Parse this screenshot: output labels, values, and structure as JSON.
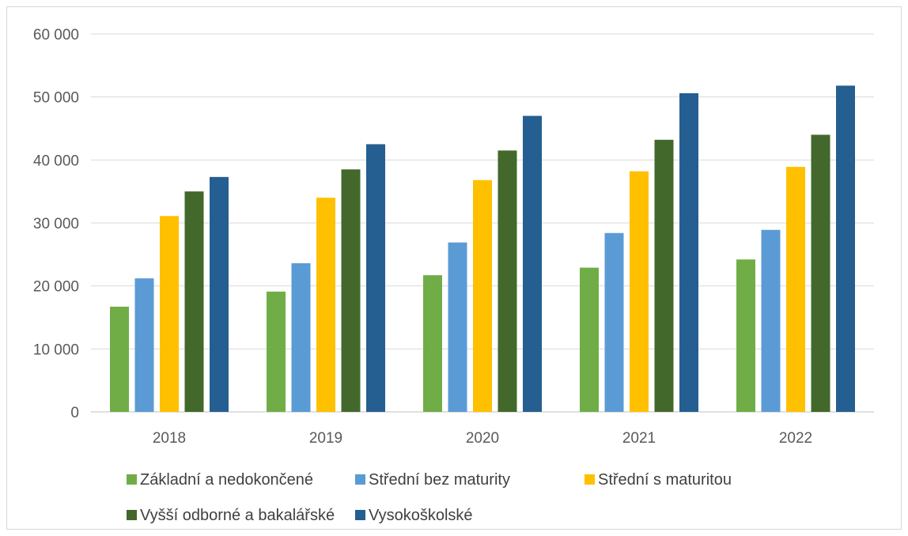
{
  "chart_data": {
    "type": "bar",
    "categories": [
      "2018",
      "2019",
      "2020",
      "2021",
      "2022"
    ],
    "series": [
      {
        "name": "Základní a nedokončené",
        "color": "#70ad47",
        "values": [
          16700,
          19100,
          21700,
          22900,
          24200
        ]
      },
      {
        "name": "Střední bez maturity",
        "color": "#5b9bd5",
        "values": [
          21200,
          23600,
          26900,
          28400,
          28900
        ]
      },
      {
        "name": "Střední s maturitou",
        "color": "#ffc000",
        "values": [
          31100,
          34000,
          36800,
          38200,
          38900
        ]
      },
      {
        "name": "Vyšší odborné a bakalářské",
        "color": "#43682b",
        "values": [
          35000,
          38500,
          41500,
          43200,
          44000
        ]
      },
      {
        "name": "Vysokoškolské",
        "color": "#255e91",
        "values": [
          37300,
          42500,
          47000,
          50600,
          51800
        ]
      }
    ],
    "ylim": [
      0,
      60000
    ],
    "yticks": [
      "0",
      "10 000",
      "20 000",
      "30 000",
      "40 000",
      "50 000",
      "60 000"
    ],
    "grid": true,
    "legend_position": "bottom"
  }
}
